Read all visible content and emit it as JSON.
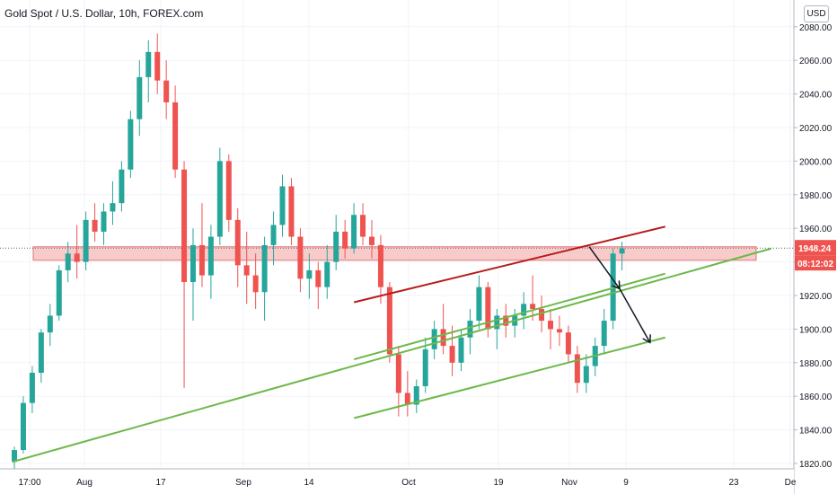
{
  "header": {
    "title": "Gold Spot / U.S. Dollar, 10h, FOREX.com",
    "currency": "USD"
  },
  "chart_data": {
    "type": "candlestick",
    "symbol": "Gold Spot / U.S. Dollar",
    "interval": "10h",
    "source": "FOREX.com",
    "grid": true,
    "colors": {
      "up": "#26a69a",
      "down": "#ef5350",
      "support": "#6cb84a",
      "resistance": "#b71c1c",
      "zone": "#f6b9b9"
    },
    "yaxis": {
      "min": 1820,
      "max": 2080,
      "ticks": [
        2080,
        2060,
        2040,
        2020,
        2000,
        1980,
        1960,
        1940,
        1920,
        1900,
        1880,
        1860,
        1840,
        1820
      ],
      "labels": [
        "2080.00",
        "2060.00",
        "2040.00",
        "2020.00",
        "2000.00",
        "1980.00",
        "1960.00",
        "1940.00",
        "1920.00",
        "1900.00",
        "1880.00",
        "1860.00",
        "1840.00",
        "1820.00"
      ]
    },
    "xaxis": {
      "labels": [
        "17:00",
        "Aug",
        "17",
        "Sep",
        "14",
        "Oct",
        "19",
        "Nov",
        "9",
        "23",
        "De"
      ]
    },
    "last_price": {
      "value": 1948.24,
      "label": "1948.24",
      "countdown": "08:12:02"
    },
    "price_zone": {
      "low": 1941,
      "high": 1949
    },
    "trendlines": [
      {
        "name": "long-support",
        "kind": "support",
        "start": [
          0,
          1821
        ],
        "end": [
          100,
          1948
        ]
      },
      {
        "name": "channel-lower",
        "kind": "support",
        "start": [
          45,
          1847
        ],
        "end": [
          86,
          1895
        ]
      },
      {
        "name": "channel-middle",
        "kind": "support",
        "start": [
          45,
          1882
        ],
        "end": [
          86,
          1933
        ]
      },
      {
        "name": "channel-upper",
        "kind": "resistance",
        "start": [
          45,
          1916
        ],
        "end": [
          86,
          1961
        ]
      }
    ],
    "projection": [
      [
        76,
        1949
      ],
      [
        80,
        1924
      ],
      [
        84,
        1892
      ]
    ],
    "candles": [
      {
        "o": 1821,
        "h": 1830,
        "l": 1815,
        "c": 1828
      },
      {
        "o": 1828,
        "h": 1860,
        "l": 1826,
        "c": 1856
      },
      {
        "o": 1856,
        "h": 1878,
        "l": 1850,
        "c": 1874
      },
      {
        "o": 1874,
        "h": 1900,
        "l": 1868,
        "c": 1898
      },
      {
        "o": 1898,
        "h": 1915,
        "l": 1890,
        "c": 1908
      },
      {
        "o": 1908,
        "h": 1938,
        "l": 1905,
        "c": 1935
      },
      {
        "o": 1935,
        "h": 1952,
        "l": 1928,
        "c": 1945
      },
      {
        "o": 1945,
        "h": 1962,
        "l": 1930,
        "c": 1940
      },
      {
        "o": 1940,
        "h": 1970,
        "l": 1935,
        "c": 1965
      },
      {
        "o": 1965,
        "h": 1975,
        "l": 1952,
        "c": 1958
      },
      {
        "o": 1958,
        "h": 1975,
        "l": 1950,
        "c": 1970
      },
      {
        "o": 1970,
        "h": 1988,
        "l": 1962,
        "c": 1975
      },
      {
        "o": 1975,
        "h": 2000,
        "l": 1970,
        "c": 1995
      },
      {
        "o": 1995,
        "h": 2030,
        "l": 1990,
        "c": 2025
      },
      {
        "o": 2025,
        "h": 2060,
        "l": 2015,
        "c": 2050
      },
      {
        "o": 2050,
        "h": 2072,
        "l": 2035,
        "c": 2065
      },
      {
        "o": 2065,
        "h": 2076,
        "l": 2040,
        "c": 2048
      },
      {
        "o": 2048,
        "h": 2060,
        "l": 2025,
        "c": 2035
      },
      {
        "o": 2035,
        "h": 2045,
        "l": 1990,
        "c": 1995
      },
      {
        "o": 1995,
        "h": 2000,
        "l": 1865,
        "c": 1928
      },
      {
        "o": 1928,
        "h": 1960,
        "l": 1905,
        "c": 1950
      },
      {
        "o": 1950,
        "h": 1975,
        "l": 1925,
        "c": 1932
      },
      {
        "o": 1932,
        "h": 1962,
        "l": 1918,
        "c": 1955
      },
      {
        "o": 1955,
        "h": 2008,
        "l": 1950,
        "c": 2000
      },
      {
        "o": 2000,
        "h": 2004,
        "l": 1958,
        "c": 1965
      },
      {
        "o": 1965,
        "h": 1972,
        "l": 1925,
        "c": 1938
      },
      {
        "o": 1938,
        "h": 1958,
        "l": 1915,
        "c": 1932
      },
      {
        "o": 1932,
        "h": 1945,
        "l": 1912,
        "c": 1922
      },
      {
        "o": 1922,
        "h": 1955,
        "l": 1905,
        "c": 1950
      },
      {
        "o": 1950,
        "h": 1970,
        "l": 1938,
        "c": 1962
      },
      {
        "o": 1962,
        "h": 1992,
        "l": 1955,
        "c": 1985
      },
      {
        "o": 1985,
        "h": 1990,
        "l": 1950,
        "c": 1955
      },
      {
        "o": 1955,
        "h": 1960,
        "l": 1922,
        "c": 1930
      },
      {
        "o": 1930,
        "h": 1945,
        "l": 1918,
        "c": 1935
      },
      {
        "o": 1935,
        "h": 1940,
        "l": 1912,
        "c": 1925
      },
      {
        "o": 1925,
        "h": 1950,
        "l": 1918,
        "c": 1940
      },
      {
        "o": 1940,
        "h": 1968,
        "l": 1935,
        "c": 1958
      },
      {
        "o": 1958,
        "h": 1965,
        "l": 1942,
        "c": 1948
      },
      {
        "o": 1948,
        "h": 1975,
        "l": 1945,
        "c": 1968
      },
      {
        "o": 1968,
        "h": 1975,
        "l": 1950,
        "c": 1955
      },
      {
        "o": 1955,
        "h": 1965,
        "l": 1942,
        "c": 1950
      },
      {
        "o": 1950,
        "h": 1956,
        "l": 1915,
        "c": 1925
      },
      {
        "o": 1925,
        "h": 1928,
        "l": 1880,
        "c": 1885
      },
      {
        "o": 1885,
        "h": 1890,
        "l": 1848,
        "c": 1862
      },
      {
        "o": 1862,
        "h": 1875,
        "l": 1848,
        "c": 1855
      },
      {
        "o": 1855,
        "h": 1870,
        "l": 1850,
        "c": 1866
      },
      {
        "o": 1866,
        "h": 1895,
        "l": 1862,
        "c": 1888
      },
      {
        "o": 1888,
        "h": 1905,
        "l": 1882,
        "c": 1900
      },
      {
        "o": 1900,
        "h": 1915,
        "l": 1885,
        "c": 1890
      },
      {
        "o": 1890,
        "h": 1902,
        "l": 1872,
        "c": 1880
      },
      {
        "o": 1880,
        "h": 1900,
        "l": 1875,
        "c": 1895
      },
      {
        "o": 1895,
        "h": 1912,
        "l": 1885,
        "c": 1905
      },
      {
        "o": 1905,
        "h": 1932,
        "l": 1900,
        "c": 1925
      },
      {
        "o": 1925,
        "h": 1928,
        "l": 1895,
        "c": 1900
      },
      {
        "o": 1900,
        "h": 1912,
        "l": 1888,
        "c": 1908
      },
      {
        "o": 1908,
        "h": 1915,
        "l": 1895,
        "c": 1902
      },
      {
        "o": 1902,
        "h": 1912,
        "l": 1895,
        "c": 1908
      },
      {
        "o": 1908,
        "h": 1922,
        "l": 1900,
        "c": 1915
      },
      {
        "o": 1915,
        "h": 1932,
        "l": 1905,
        "c": 1912
      },
      {
        "o": 1912,
        "h": 1920,
        "l": 1898,
        "c": 1905
      },
      {
        "o": 1905,
        "h": 1912,
        "l": 1888,
        "c": 1900
      },
      {
        "o": 1900,
        "h": 1908,
        "l": 1890,
        "c": 1898
      },
      {
        "o": 1898,
        "h": 1902,
        "l": 1880,
        "c": 1885
      },
      {
        "o": 1885,
        "h": 1890,
        "l": 1862,
        "c": 1868
      },
      {
        "o": 1868,
        "h": 1885,
        "l": 1862,
        "c": 1878
      },
      {
        "o": 1878,
        "h": 1895,
        "l": 1872,
        "c": 1890
      },
      {
        "o": 1890,
        "h": 1912,
        "l": 1885,
        "c": 1905
      },
      {
        "o": 1905,
        "h": 1948,
        "l": 1900,
        "c": 1945
      },
      {
        "o": 1945,
        "h": 1952,
        "l": 1935,
        "c": 1948
      }
    ]
  }
}
